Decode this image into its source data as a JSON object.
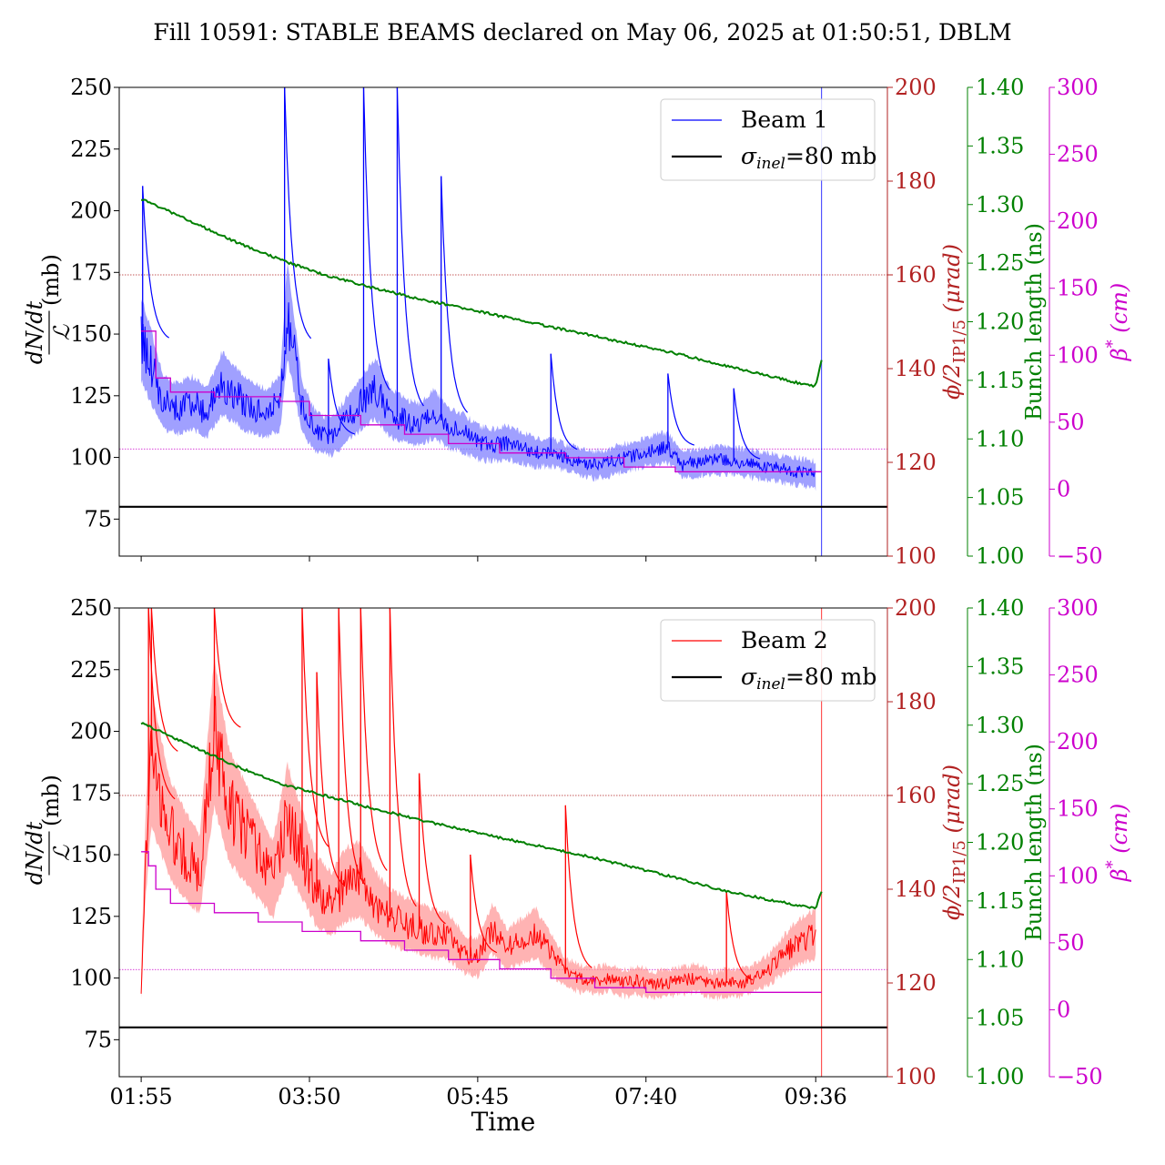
{
  "colors": {
    "beam1": "#0000ff",
    "beam1_band": "#8080ff",
    "beam2": "#ff0000",
    "beam2_band": "#ff9999",
    "phi_axis": "#b22222",
    "bunch_length": "#008000",
    "beta_star": "#cc00cc",
    "sigma_line": "#000000"
  },
  "chart_data": {
    "type": "line",
    "title": "Fill 10591: STABLE BEAMS declared on May 06, 2025 at 01:50:51, DBLM",
    "xlabel": "Time",
    "x_ticks": [
      "01:55",
      "03:50",
      "05:45",
      "07:40",
      "09:36"
    ],
    "x_range": [
      "01:40",
      "10:25"
    ],
    "axes": {
      "left": {
        "label_num": "dN/dt",
        "label_den": "ℒ",
        "label_unit": "(mb)",
        "range": [
          60,
          250
        ],
        "ticks": [
          "75",
          "100",
          "125",
          "150",
          "175",
          "200",
          "225",
          "250"
        ]
      },
      "phi": {
        "label": "ϕ/2IP1/5 (μrad)",
        "label_main": "ϕ/2",
        "label_sub": "IP1/5",
        "label_unit": "(μrad)",
        "range": [
          100,
          200
        ],
        "ticks": [
          "100",
          "120",
          "140",
          "160",
          "180",
          "200"
        ]
      },
      "bunch": {
        "label": "Bunch length (ns)",
        "range": [
          1.0,
          1.4
        ],
        "ticks": [
          "1.00",
          "1.05",
          "1.10",
          "1.15",
          "1.20",
          "1.25",
          "1.30",
          "1.35",
          "1.40"
        ]
      },
      "beta": {
        "label": "β* (cm)",
        "label_main": "β",
        "label_sup": "*",
        "label_unit": "(cm)",
        "range": [
          -50,
          300
        ],
        "ticks": [
          "−50",
          "0",
          "50",
          "100",
          "150",
          "200",
          "250",
          "300"
        ]
      }
    },
    "panels": [
      {
        "legend": {
          "series": "Beam 1",
          "sigma_label": "σinel=80 mb",
          "sigma_sym": "σ",
          "sigma_sub": "inel",
          "sigma_rest": "=80 mb"
        },
        "sigma_inel_mb": 80,
        "phi_reference_urad": 160,
        "beta_reference_cm": 30,
        "xsec_mb": {
          "times": [
            "01:55",
            "02:00",
            "02:10",
            "02:20",
            "02:30",
            "02:40",
            "02:50",
            "03:00",
            "03:10",
            "03:20",
            "03:30",
            "03:35",
            "03:45",
            "03:55",
            "04:05",
            "04:15",
            "04:25",
            "04:35",
            "04:45",
            "04:55",
            "05:05",
            "05:15",
            "05:25",
            "05:35",
            "05:45",
            "05:55",
            "06:05",
            "06:15",
            "06:25",
            "06:35",
            "06:45",
            "06:55",
            "07:05",
            "07:15",
            "07:25",
            "07:35",
            "07:45",
            "07:55",
            "08:05",
            "08:15",
            "08:25",
            "08:35",
            "08:45",
            "08:55",
            "09:05",
            "09:15",
            "09:25",
            "09:36"
          ],
          "values": [
            148,
            140,
            122,
            120,
            122,
            118,
            130,
            125,
            120,
            118,
            122,
            160,
            120,
            110,
            108,
            115,
            122,
            128,
            118,
            115,
            113,
            118,
            112,
            110,
            106,
            105,
            106,
            104,
            102,
            102,
            100,
            98,
            97,
            98,
            100,
            101,
            103,
            104,
            97,
            98,
            99,
            99,
            98,
            97,
            96,
            95,
            94,
            93
          ],
          "spikes": [
            {
              "time": "01:56",
              "value": 210
            },
            {
              "time": "03:33",
              "value": 250
            },
            {
              "time": "04:27",
              "value": 250
            },
            {
              "time": "04:50",
              "value": 250
            },
            {
              "time": "05:20",
              "value": 214
            },
            {
              "time": "04:03",
              "value": 140
            },
            {
              "time": "06:35",
              "value": 142
            },
            {
              "time": "07:55",
              "value": 134
            },
            {
              "time": "08:40",
              "value": 128
            }
          ]
        },
        "crossing_angle_urad": {
          "times": [
            "01:55",
            "02:05",
            "02:15",
            "02:45",
            "03:30",
            "03:50",
            "04:25",
            "04:55",
            "05:25",
            "06:00",
            "06:45",
            "07:25",
            "08:00",
            "08:45",
            "09:40"
          ],
          "values": [
            148,
            138,
            135,
            134,
            133,
            130,
            128,
            126,
            124,
            122,
            121,
            119,
            118,
            118,
            118
          ]
        },
        "bunch_length_ns": {
          "times": [
            "01:55",
            "02:30",
            "03:00",
            "03:30",
            "04:00",
            "04:30",
            "05:00",
            "05:30",
            "06:00",
            "06:30",
            "07:00",
            "07:30",
            "08:00",
            "08:30",
            "09:00",
            "09:30",
            "09:36",
            "09:40"
          ],
          "values": [
            1.305,
            1.285,
            1.268,
            1.253,
            1.24,
            1.23,
            1.221,
            1.213,
            1.205,
            1.197,
            1.189,
            1.181,
            1.173,
            1.164,
            1.155,
            1.146,
            1.145,
            1.167
          ]
        }
      },
      {
        "legend": {
          "series": "Beam 2",
          "sigma_label": "σinel=80 mb",
          "sigma_sym": "σ",
          "sigma_sub": "inel",
          "sigma_rest": "=80 mb"
        },
        "sigma_inel_mb": 80,
        "phi_reference_urad": 160,
        "beta_reference_cm": 30,
        "xsec_mb": {
          "times": [
            "01:55",
            "01:58",
            "02:02",
            "02:08",
            "02:15",
            "02:25",
            "02:35",
            "02:45",
            "02:55",
            "03:05",
            "03:15",
            "03:25",
            "03:35",
            "03:45",
            "03:55",
            "04:05",
            "04:15",
            "04:25",
            "04:35",
            "04:45",
            "04:55",
            "05:05",
            "05:15",
            "05:25",
            "05:35",
            "05:45",
            "05:55",
            "06:05",
            "06:15",
            "06:25",
            "06:35",
            "06:45",
            "06:55",
            "07:05",
            "07:15",
            "07:25",
            "07:35",
            "07:45",
            "07:55",
            "08:05",
            "08:15",
            "08:25",
            "08:35",
            "08:45",
            "08:55",
            "09:05",
            "09:15",
            "09:25",
            "09:36"
          ],
          "values": [
            96,
            150,
            190,
            175,
            160,
            150,
            142,
            200,
            170,
            160,
            150,
            140,
            165,
            150,
            135,
            130,
            138,
            140,
            130,
            125,
            122,
            120,
            118,
            117,
            110,
            108,
            120,
            112,
            115,
            118,
            110,
            102,
            100,
            99,
            100,
            98,
            99,
            97,
            98,
            99,
            100,
            97,
            98,
            98,
            100,
            104,
            110,
            115,
            118
          ],
          "spikes": [
            {
              "time": "02:00",
              "value": 250
            },
            {
              "time": "02:02",
              "value": 250
            },
            {
              "time": "02:45",
              "value": 250
            },
            {
              "time": "03:45",
              "value": 250
            },
            {
              "time": "04:10",
              "value": 250
            },
            {
              "time": "04:25",
              "value": 250
            },
            {
              "time": "04:45",
              "value": 250
            },
            {
              "time": "03:55",
              "value": 224
            },
            {
              "time": "05:05",
              "value": 183
            },
            {
              "time": "05:40",
              "value": 150
            },
            {
              "time": "06:45",
              "value": 170
            },
            {
              "time": "08:35",
              "value": 135
            }
          ]
        },
        "crossing_angle_urad": {
          "times": [
            "01:55",
            "02:00",
            "02:05",
            "02:15",
            "02:45",
            "03:15",
            "03:45",
            "04:25",
            "04:55",
            "05:25",
            "06:00",
            "06:35",
            "07:05",
            "07:40",
            "08:30",
            "09:40"
          ],
          "values": [
            148,
            145,
            140,
            137,
            135,
            133,
            131,
            129,
            127,
            125,
            123,
            121,
            119,
            118,
            118,
            118
          ]
        },
        "bunch_length_ns": {
          "times": [
            "01:55",
            "02:30",
            "03:00",
            "03:30",
            "04:00",
            "04:30",
            "05:00",
            "05:30",
            "06:00",
            "06:30",
            "07:00",
            "07:30",
            "08:00",
            "08:30",
            "09:00",
            "09:30",
            "09:36",
            "09:40"
          ],
          "values": [
            1.302,
            1.282,
            1.265,
            1.25,
            1.24,
            1.23,
            1.221,
            1.212,
            1.204,
            1.196,
            1.188,
            1.179,
            1.17,
            1.16,
            1.152,
            1.145,
            1.144,
            1.158
          ]
        }
      }
    ]
  }
}
